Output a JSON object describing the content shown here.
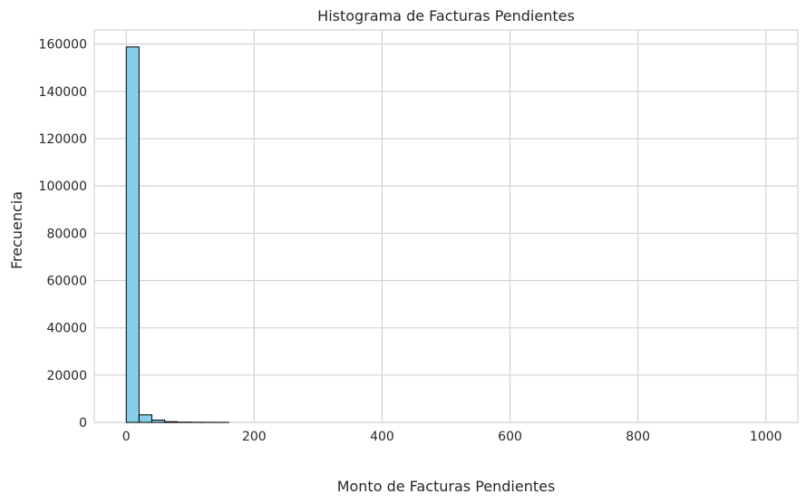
{
  "chart_data": {
    "type": "bar",
    "title": "Histograma de Facturas Pendientes",
    "xlabel": "Monto de Facturas Pendientes",
    "ylabel": "Frecuencia",
    "xlim": [
      -50,
      1050
    ],
    "ylim": [
      0,
      166000
    ],
    "xticks": [
      0,
      200,
      400,
      600,
      800,
      1000
    ],
    "yticks": [
      0,
      20000,
      40000,
      60000,
      80000,
      100000,
      120000,
      140000,
      160000
    ],
    "bin_width": 20,
    "bins": [
      {
        "x0": 0,
        "x1": 20,
        "count": 158800
      },
      {
        "x0": 20,
        "x1": 40,
        "count": 3200
      },
      {
        "x0": 40,
        "x1": 60,
        "count": 1000
      },
      {
        "x0": 60,
        "x1": 80,
        "count": 300
      },
      {
        "x0": 80,
        "x1": 100,
        "count": 120
      },
      {
        "x0": 100,
        "x1": 120,
        "count": 60
      },
      {
        "x0": 120,
        "x1": 140,
        "count": 30
      },
      {
        "x0": 140,
        "x1": 160,
        "count": 15
      }
    ],
    "bar_color": "#87ceeb",
    "edge_color": "#000000",
    "grid": true,
    "grid_color": "#d3d3d3",
    "legend": "none"
  }
}
